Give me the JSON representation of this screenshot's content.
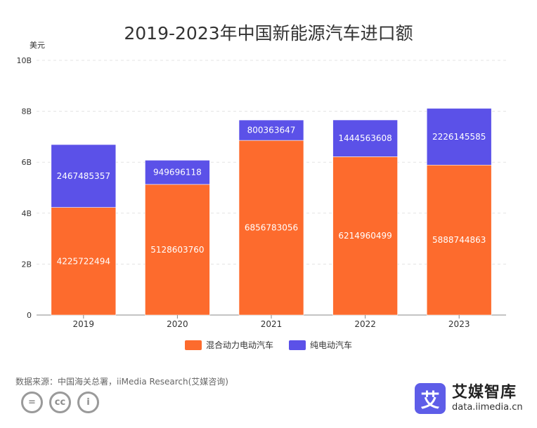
{
  "chart_data": {
    "type": "bar",
    "stacked": true,
    "title": "2019-2023年中国新能源汽车进口额",
    "ylabel": "美元",
    "xlabel": "",
    "ylim": [
      0,
      10000000000
    ],
    "yticks": [
      0,
      2000000000,
      4000000000,
      6000000000,
      8000000000,
      10000000000
    ],
    "ytick_labels": [
      "0",
      "2B",
      "4B",
      "6B",
      "8B",
      "10B"
    ],
    "categories": [
      "2019",
      "2020",
      "2021",
      "2022",
      "2023"
    ],
    "series": [
      {
        "name": "混合动力电动汽车",
        "color": "#fd6b2d",
        "values": [
          4225722494,
          5128603760,
          6856783056,
          6214960499,
          5888744863
        ]
      },
      {
        "name": "纯电动汽车",
        "color": "#5b51e8",
        "values": [
          2467485357,
          949696118,
          800363647,
          1444563608,
          2226145585
        ]
      }
    ],
    "grid": true,
    "legend": "bottom-center"
  },
  "footer": {
    "source": "数据来源：中国海关总署，iiMedia Research(艾媒咨询)",
    "cc_badges": [
      "=",
      "cc",
      "i"
    ]
  },
  "brand": {
    "logo_char": "艾",
    "name": "艾媒智库",
    "url": "data.iimedia.cn"
  }
}
